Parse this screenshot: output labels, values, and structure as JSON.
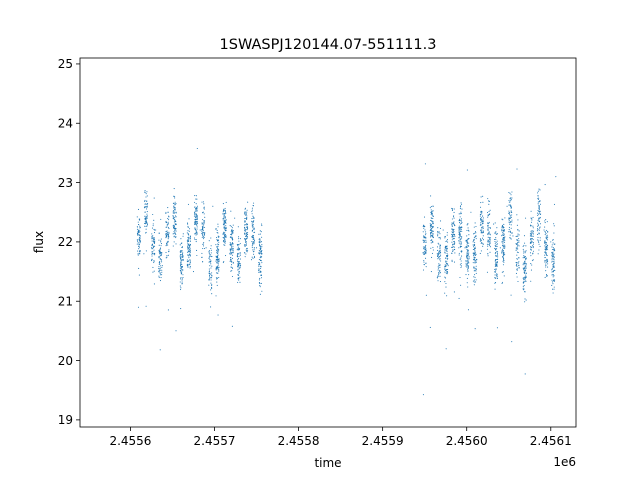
{
  "chart_data": {
    "type": "scatter",
    "title": "1SWASPJ120144.07-551111.3",
    "xlabel": "time",
    "ylabel": "flux",
    "x_offset_label": "1e6",
    "xlim": [
      2.45554,
      2.45613
    ],
    "ylim": [
      18.88,
      25.1
    ],
    "x_ticks": [
      2.4556,
      2.4557,
      2.4558,
      2.4559,
      2.456,
      2.4561
    ],
    "x_tick_labels": [
      "2.4556",
      "2.4557",
      "2.4558",
      "2.4559",
      "2.4560",
      "2.4561"
    ],
    "y_ticks": [
      19,
      20,
      21,
      22,
      23,
      24,
      25
    ],
    "y_tick_labels": [
      "19",
      "20",
      "21",
      "22",
      "23",
      "24",
      "25"
    ],
    "grid": false,
    "marker_color": "#1f77b4",
    "series": [
      {
        "values": [
          [
            2.455612,
            22.1
          ],
          [
            2.455616,
            21.8
          ],
          [
            2.45562,
            22.4
          ],
          [
            2.455625,
            21.9
          ],
          [
            2.45563,
            22.2
          ],
          [
            2.455638,
            21.6
          ],
          [
            2.455645,
            22.5
          ],
          [
            2.455652,
            22.0
          ],
          [
            2.45566,
            21.7
          ],
          [
            2.455668,
            22.3
          ],
          [
            2.455675,
            21.5
          ],
          [
            2.455683,
            22.2
          ],
          [
            2.45569,
            21.9
          ],
          [
            2.455698,
            22.6
          ],
          [
            2.455705,
            21.4
          ],
          [
            2.455712,
            22.1
          ],
          [
            2.455718,
            21.8
          ],
          [
            2.455724,
            22.4
          ],
          [
            2.455731,
            21.6
          ],
          [
            2.455738,
            22.0
          ],
          [
            2.455744,
            21.7
          ],
          [
            2.45575,
            21.9
          ],
          [
            2.455754,
            21.3
          ],
          [
            2.455756,
            22.3
          ],
          [
            2.455952,
            21.1
          ],
          [
            2.455958,
            21.5
          ],
          [
            2.455965,
            21.8
          ],
          [
            2.455972,
            22.2
          ],
          [
            2.455978,
            21.6
          ],
          [
            2.455985,
            22.4
          ],
          [
            2.455992,
            21.4
          ],
          [
            2.455998,
            21.9
          ],
          [
            2.456005,
            22.5
          ],
          [
            2.456012,
            21.7
          ],
          [
            2.456018,
            22.2
          ],
          [
            2.456025,
            21.8
          ],
          [
            2.456032,
            22.3
          ],
          [
            2.45604,
            21.9
          ],
          [
            2.456048,
            22.6
          ],
          [
            2.456055,
            22.1
          ],
          [
            2.456062,
            21.6
          ],
          [
            2.45607,
            22.4
          ],
          [
            2.456078,
            22.0
          ],
          [
            2.456085,
            21.8
          ],
          [
            2.456092,
            22.2
          ],
          [
            2.4561,
            22.0
          ],
          [
            2.456106,
            23.1
          ]
        ],
        "segments": [
          {
            "x_range": [
              2.45561,
              2.455757
            ],
            "center": 22.0,
            "spread": 0.55,
            "period": 8.5e-06
          },
          {
            "x_range": [
              2.45595,
              2.456107
            ],
            "center": 22.0,
            "spread": 0.6,
            "period": 8.5e-06
          }
        ]
      }
    ]
  }
}
